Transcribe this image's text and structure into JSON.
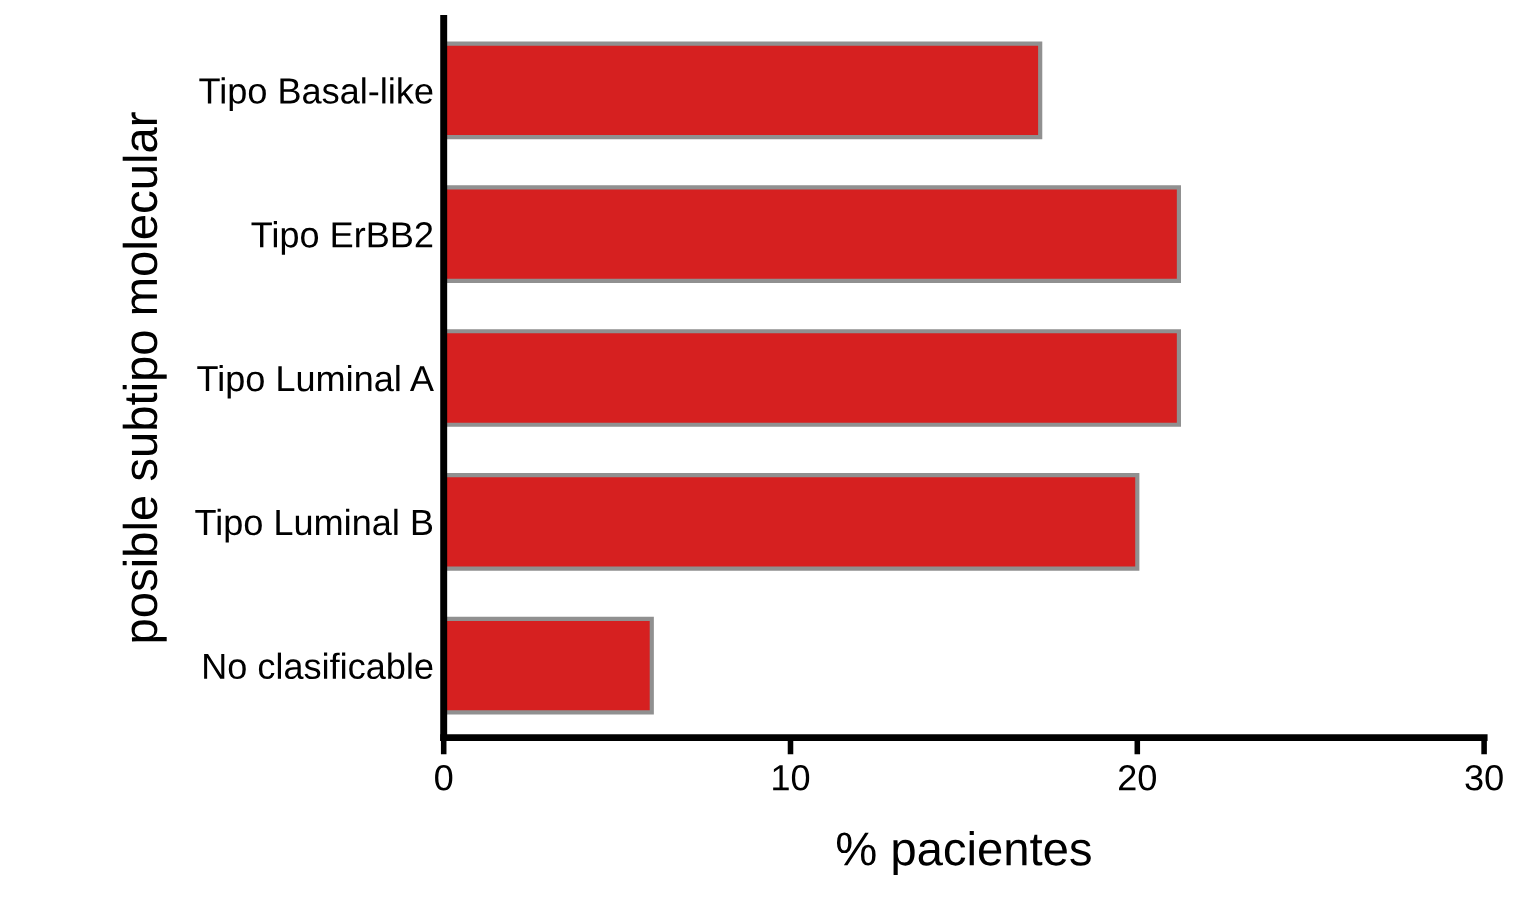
{
  "chart_data": {
    "type": "bar",
    "orientation": "horizontal",
    "xlabel": "% pacientes",
    "ylabel": "posible subtipo molecular",
    "categories": [
      "Tipo Basal-like",
      "Tipo ErBB2",
      "Tipo Luminal A",
      "Tipo Luminal B",
      "No clasificable"
    ],
    "values": [
      17.2,
      21.2,
      21.2,
      20,
      6
    ],
    "color": "#d62020",
    "xlim": [
      0,
      30
    ],
    "xticks": [
      0,
      10,
      20,
      30
    ],
    "grid": false,
    "legend": false
  }
}
